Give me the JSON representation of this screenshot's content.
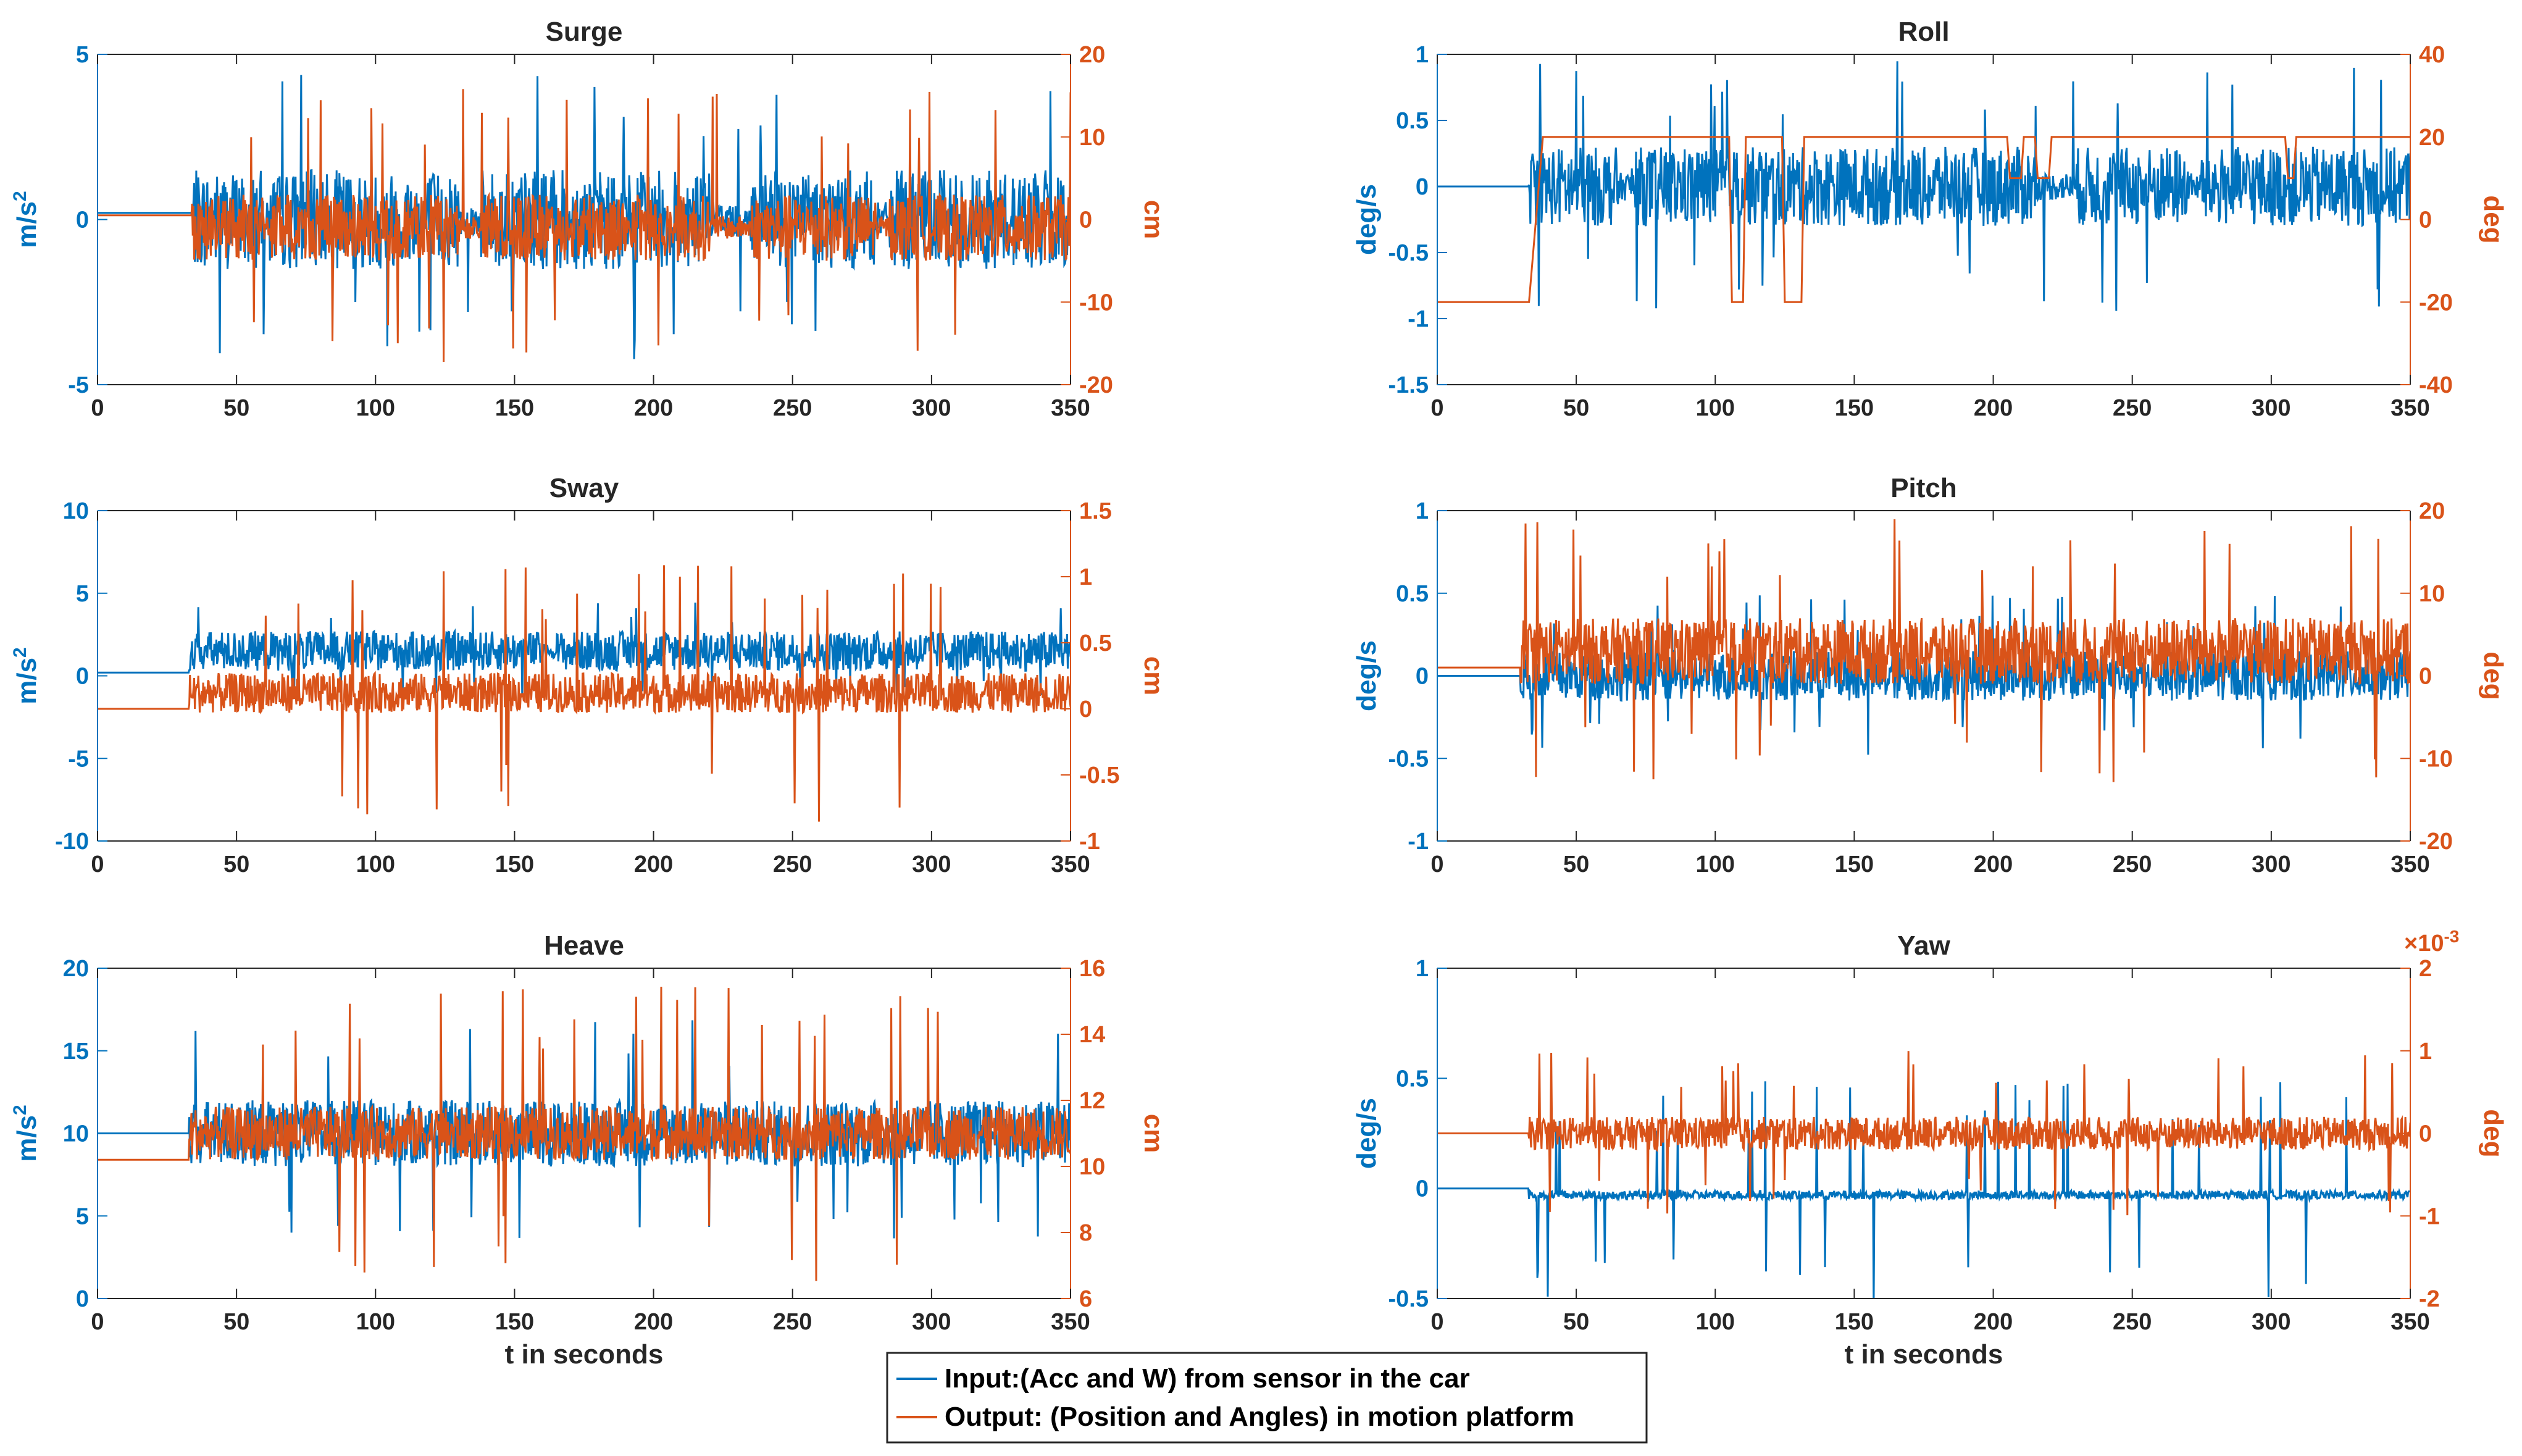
{
  "colors": {
    "input": "#0072BD",
    "output": "#D95319",
    "axes": "#262626"
  },
  "legend": {
    "input_label": "Input:(Acc and W) from sensor in the car",
    "output_label": "Output: (Position and Angles) in motion platform"
  },
  "chart_data": [
    {
      "type": "line",
      "title": "Surge",
      "xlabel": "",
      "xlim": [
        0,
        350
      ],
      "xticks": [
        "0",
        "50",
        "100",
        "150",
        "200",
        "250",
        "300",
        "350"
      ],
      "ylabel_left": "m/s",
      "ylabel_left_sup": "2",
      "ylim_left": [
        -5,
        5
      ],
      "yticks_left": [
        "-5",
        "0",
        "5"
      ],
      "ylabel_right": "cm",
      "ylim_right": [
        -20,
        20
      ],
      "yticks_right": [
        "-20",
        "-10",
        "0",
        "10",
        "20"
      ],
      "series": [
        {
          "name": "Input",
          "axis": "left",
          "start_value": 0.2,
          "active_from": 34,
          "quiet_from": 0,
          "base": 0,
          "amplitude": 1.5,
          "extreme": 4.5,
          "segments": [
            [
              34,
              60
            ],
            [
              62,
              130
            ],
            [
              138,
              220
            ],
            [
              235,
              280
            ],
            [
              285,
              350
            ]
          ]
        },
        {
          "name": "Output",
          "axis": "right",
          "start_value": 0.5,
          "active_from": 34,
          "base": -1,
          "amplitude": 4,
          "extreme": 16,
          "segments": [
            [
              34,
              60
            ],
            [
              62,
              130
            ],
            [
              138,
              220
            ],
            [
              235,
              280
            ],
            [
              285,
              350
            ]
          ]
        }
      ]
    },
    {
      "type": "line",
      "title": "Roll",
      "xlabel": "",
      "xlim": [
        0,
        350
      ],
      "xticks": [
        "0",
        "50",
        "100",
        "150",
        "200",
        "250",
        "300",
        "350"
      ],
      "ylabel_left": "deg/s",
      "ylim_left": [
        -1.5,
        1
      ],
      "yticks_left": [
        "-1.5",
        "-1",
        "-0.5",
        "0",
        "0.5",
        "1"
      ],
      "ylabel_right": "deg",
      "ylim_right": [
        -40,
        40
      ],
      "yticks_right": [
        "-40",
        "-20",
        "0",
        "20",
        "40"
      ],
      "series": [
        {
          "name": "Input",
          "axis": "left",
          "start_value": 0,
          "active_from": 33,
          "base": 0,
          "amplitude": 0.3,
          "extreme": 0.95,
          "segments": [
            [
              33,
              65
            ],
            [
              70,
              215
            ],
            [
              230,
              270
            ],
            [
              275,
              350
            ]
          ]
        },
        {
          "name": "Output",
          "axis": "right",
          "steps": [
            [
              0,
              -20
            ],
            [
              33,
              -20
            ],
            [
              38,
              20
            ],
            [
              105,
              20
            ],
            [
              106,
              -20
            ],
            [
              110,
              -20
            ],
            [
              111,
              20
            ],
            [
              124,
              20
            ],
            [
              125,
              -20
            ],
            [
              131,
              -20
            ],
            [
              132,
              20
            ],
            [
              205,
              20
            ],
            [
              206,
              10
            ],
            [
              210,
              10
            ],
            [
              211,
              20
            ],
            [
              215,
              20
            ],
            [
              216,
              10
            ],
            [
              220,
              10
            ],
            [
              221,
              20
            ],
            [
              305,
              20
            ],
            [
              306,
              10
            ],
            [
              308,
              10
            ],
            [
              309,
              20
            ],
            [
              350,
              20
            ]
          ]
        }
      ]
    },
    {
      "type": "line",
      "title": "Sway",
      "xlabel": "",
      "xlim": [
        0,
        350
      ],
      "xticks": [
        "0",
        "50",
        "100",
        "150",
        "200",
        "250",
        "300",
        "350"
      ],
      "ylabel_left": "m/s",
      "ylabel_left_sup": "2",
      "ylim_left": [
        -10,
        10
      ],
      "yticks_left": [
        "-10",
        "-5",
        "0",
        "5",
        "10"
      ],
      "ylabel_right": "cm",
      "ylim_right": [
        -1,
        1.5
      ],
      "yticks_right": [
        "-1",
        "-0.5",
        "0",
        "0.5",
        "1",
        "1.5"
      ],
      "series": [
        {
          "name": "Input",
          "axis": "left",
          "start_value": 0.2,
          "active_from": 33,
          "base": 1.5,
          "amplitude": 1.2,
          "extreme": 4.5,
          "segments": [
            [
              33,
              160
            ],
            [
              165,
              350
            ]
          ]
        },
        {
          "name": "Output",
          "axis": "right",
          "start_value": 0,
          "active_from": 33,
          "base": 0.12,
          "amplitude": 0.15,
          "extreme": 1.1,
          "segments": [
            [
              33,
              350
            ]
          ]
        }
      ]
    },
    {
      "type": "line",
      "title": "Pitch",
      "xlabel": "",
      "xlim": [
        0,
        350
      ],
      "xticks": [
        "0",
        "50",
        "100",
        "150",
        "200",
        "250",
        "300",
        "350"
      ],
      "ylabel_left": "deg/s",
      "ylim_left": [
        -1,
        1
      ],
      "yticks_left": [
        "-1",
        "-0.5",
        "0",
        "0.5",
        "1"
      ],
      "ylabel_right": "deg",
      "ylim_right": [
        -20,
        20
      ],
      "yticks_right": [
        "-20",
        "-10",
        "0",
        "10",
        "20"
      ],
      "series": [
        {
          "name": "Input",
          "axis": "left",
          "start_value": 0,
          "active_from": 30,
          "base": 0,
          "amplitude": 0.15,
          "extreme": 0.5,
          "segments": [
            [
              30,
              350
            ]
          ]
        },
        {
          "name": "Output",
          "axis": "right",
          "start_value": 1,
          "active_from": 30,
          "base": 3,
          "amplitude": 4,
          "extreme": 19,
          "segments": [
            [
              30,
              350
            ]
          ]
        }
      ]
    },
    {
      "type": "line",
      "title": "Heave",
      "xlabel": "t in seconds",
      "xlim": [
        0,
        350
      ],
      "xticks": [
        "0",
        "50",
        "100",
        "150",
        "200",
        "250",
        "300",
        "350"
      ],
      "ylabel_left": "m/s",
      "ylabel_left_sup": "2",
      "ylim_left": [
        0,
        20
      ],
      "yticks_left": [
        "0",
        "5",
        "10",
        "15",
        "20"
      ],
      "ylabel_right": "cm",
      "ylim_right": [
        6,
        16
      ],
      "yticks_right": [
        "6",
        "8",
        "10",
        "12",
        "14",
        "16"
      ],
      "series": [
        {
          "name": "Input",
          "axis": "left",
          "start_value": 10,
          "active_from": 33,
          "base": 10,
          "amplitude": 2,
          "extreme": 17,
          "segments": [
            [
              33,
              350
            ]
          ]
        },
        {
          "name": "Output",
          "axis": "right",
          "start_value": 10.2,
          "active_from": 33,
          "base": 11,
          "amplitude": 0.8,
          "extreme": 15.5,
          "segments": [
            [
              33,
              350
            ]
          ]
        }
      ]
    },
    {
      "type": "line",
      "title": "Yaw",
      "xlabel": "t in seconds",
      "xlim": [
        0,
        350
      ],
      "xticks": [
        "0",
        "50",
        "100",
        "150",
        "200",
        "250",
        "300",
        "350"
      ],
      "ylabel_left": "deg/s",
      "ylim_left": [
        -0.5,
        1
      ],
      "yticks_left": [
        "-0.5",
        "0",
        "0.5",
        "1"
      ],
      "ylabel_right": "deg",
      "ylim_right": [
        -2,
        2
      ],
      "yticks_right": [
        "-2",
        "-1",
        "0",
        "1",
        "2"
      ],
      "exponent_label": "×10",
      "exponent_sup": "-3",
      "series": [
        {
          "name": "Input",
          "axis": "left",
          "start_value": 0,
          "active_from": 33,
          "base": -0.03,
          "amplitude": 0.02,
          "extreme": 0.5,
          "segments": [
            [
              33,
              350
            ]
          ]
        },
        {
          "name": "Output",
          "axis": "right",
          "start_value": 0,
          "active_from": 33,
          "base": 0,
          "amplitude": 0.2,
          "extreme": 1,
          "segments": [
            [
              33,
              350
            ]
          ]
        }
      ]
    }
  ]
}
